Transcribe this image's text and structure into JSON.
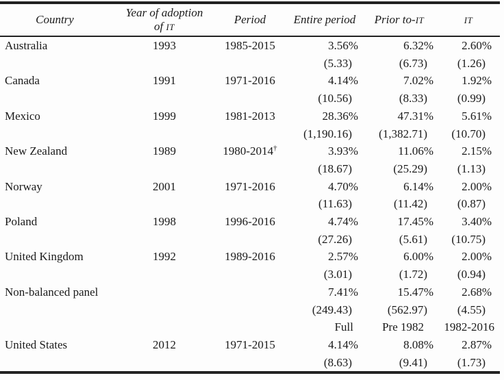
{
  "table": {
    "header": {
      "country": "Country",
      "year_line1": "Year of adoption",
      "year_line2_prefix": "of ",
      "year_line2_smallcaps": "IT",
      "period": "Period",
      "entire_period": "Entire period",
      "prior_prefix": "Prior to-",
      "prior_smallcaps": "IT",
      "it_smallcaps": "IT"
    },
    "rows": [
      {
        "country": "Australia",
        "year": "1993",
        "period": "1985-2015",
        "sup": "",
        "c4": "3.56%",
        "c5": "6.32%",
        "c6": "2.60%"
      },
      {
        "c4": "(5.33)",
        "c5": "(6.73)",
        "c6": "(1.26)"
      },
      {
        "country": "Canada",
        "year": "1991",
        "period": "1971-2016",
        "sup": "",
        "c4": "4.14%",
        "c5": "7.02%",
        "c6": "1.92%"
      },
      {
        "c4": "(10.56)",
        "c5": "(8.33)",
        "c6": "(0.99)"
      },
      {
        "country": "Mexico",
        "year": "1999",
        "period": "1981-2013",
        "sup": "",
        "c4": "28.36%",
        "c5": "47.31%",
        "c6": "5.61%"
      },
      {
        "c4": "(1,190.16)",
        "c5": "(1,382.71)",
        "c6": "(10.70)"
      },
      {
        "country": "New Zealand",
        "year": "1989",
        "period": "1980-2014",
        "sup": "†",
        "c4": "3.93%",
        "c5": "11.06%",
        "c6": "2.15%"
      },
      {
        "c4": "(18.67)",
        "c5": "(25.29)",
        "c6": "(1.13)"
      },
      {
        "country": "Norway",
        "year": "2001",
        "period": "1971-2016",
        "sup": "",
        "c4": "4.70%",
        "c5": "6.14%",
        "c6": "2.00%"
      },
      {
        "c4": "(11.63)",
        "c5": "(11.42)",
        "c6": "(0.87)"
      },
      {
        "country": "Poland",
        "year": "1998",
        "period": "1996-2016",
        "sup": "",
        "c4": "4.74%",
        "c5": "17.45%",
        "c6": "3.40%"
      },
      {
        "c4": "(27.26)",
        "c5": "(5.61)",
        "c6": "(10.75)"
      },
      {
        "country": "United Kingdom",
        "year": "1992",
        "period": "1989-2016",
        "sup": "",
        "c4": "2.57%",
        "c5": "6.00%",
        "c6": "2.00%"
      },
      {
        "c4": "(3.01)",
        "c5": "(1.72)",
        "c6": "(0.94)"
      },
      {
        "country": "Non-balanced panel",
        "year": "",
        "period": "",
        "sup": "",
        "c4": "7.41%",
        "c5": "15.47%",
        "c6": "2.68%"
      },
      {
        "c4": "(249.43)",
        "c5": "(562.97)",
        "c6": "(4.55)"
      },
      {
        "c4": "Full",
        "c5": "Pre 1982",
        "c6": "1982-2016"
      },
      {
        "country": "United States",
        "year": "2012",
        "period": "1971-2015",
        "sup": "",
        "c4": "4.14%",
        "c5": "8.08%",
        "c6": "2.87%"
      },
      {
        "c4": "(8.63)",
        "c5": "(9.41)",
        "c6": "(1.73)"
      }
    ]
  }
}
